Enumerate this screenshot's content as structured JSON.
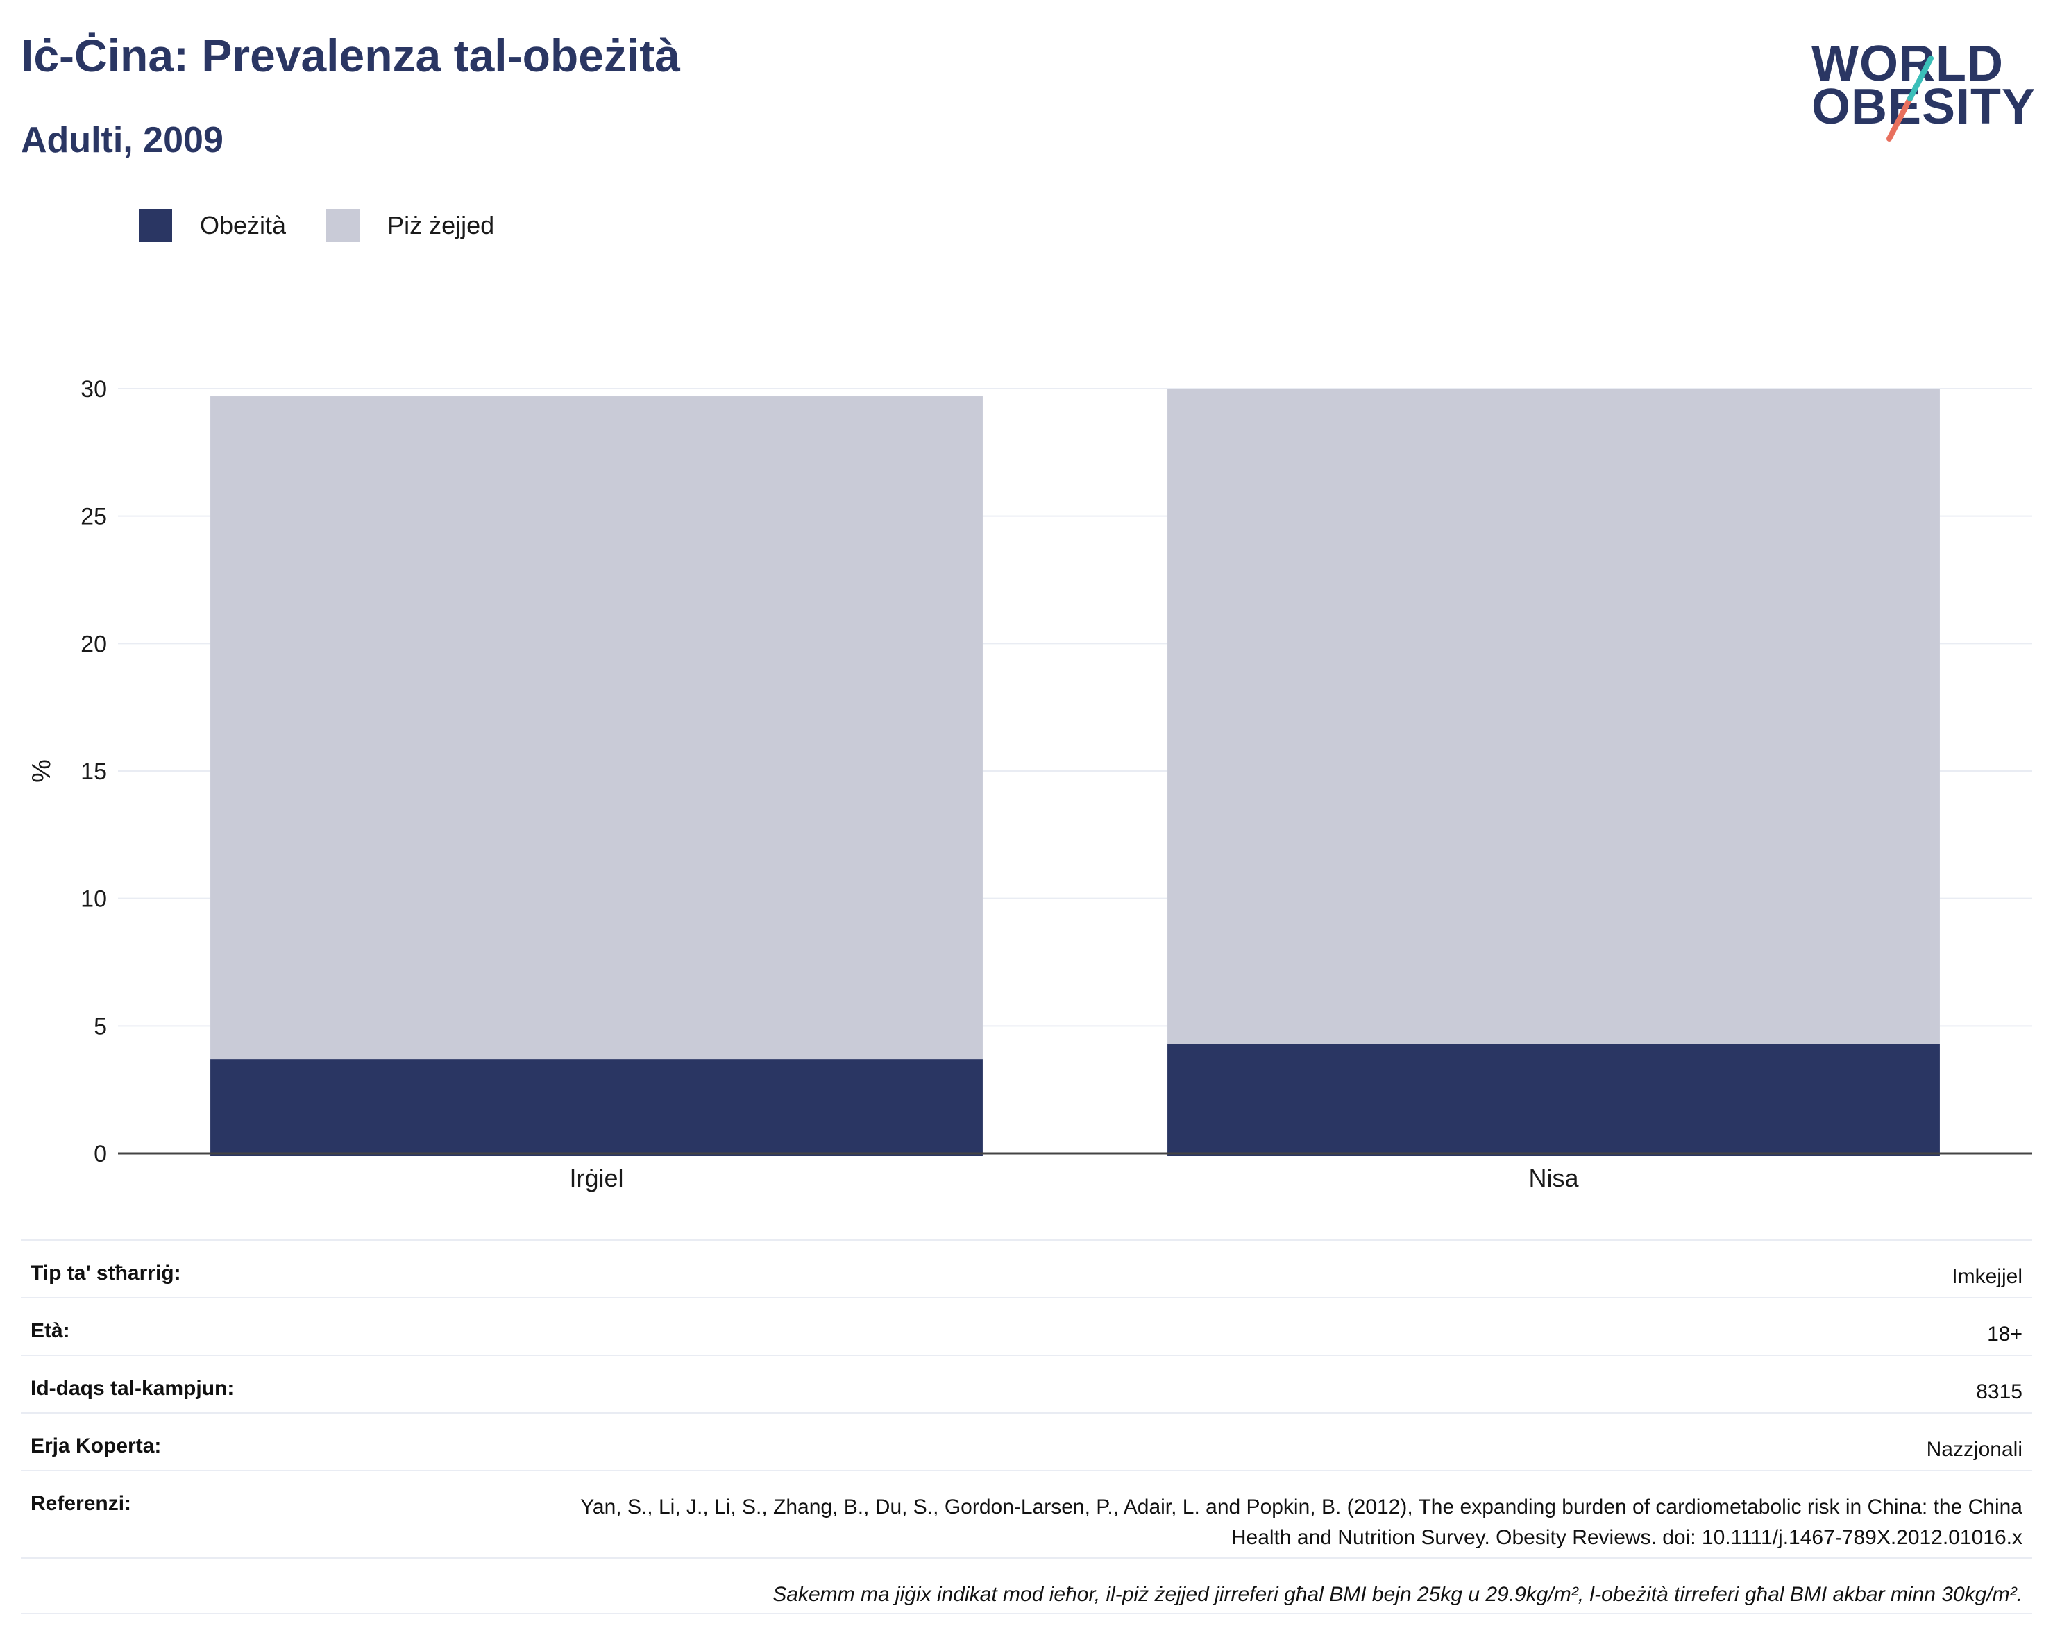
{
  "header": {
    "title": "Iċ-Ċina: Prevalenza tal-obeżità",
    "subtitle": "Adulti, 2009"
  },
  "logo": {
    "line1": "WORLD",
    "line2": "OBESITY"
  },
  "legend": [
    {
      "label": "Obeżità",
      "color": "#2a3663"
    },
    {
      "label": "Piż żejjed",
      "color": "#c9cbd7"
    }
  ],
  "chart_data": {
    "type": "bar",
    "stacked": true,
    "categories": [
      "Irġiel",
      "Nisa"
    ],
    "series": [
      {
        "name": "Obeżità",
        "color": "#2a3663",
        "values": [
          3.7,
          4.3
        ]
      },
      {
        "name": "Piż żejjed",
        "color": "#c9cbd7",
        "values": [
          26.0,
          25.7
        ]
      }
    ],
    "ylabel": "%",
    "ylim": [
      0,
      30
    ],
    "yticks": [
      0,
      5,
      10,
      15,
      20,
      25,
      30
    ],
    "grid": true,
    "legend_position": "top-left"
  },
  "info": {
    "rows": [
      {
        "key": "Tip ta' stħarriġ:",
        "value": "Imkejjel"
      },
      {
        "key": "Età:",
        "value": "18+"
      },
      {
        "key": "Id-daqs tal-kampjun:",
        "value": "8315"
      },
      {
        "key": "Erja Koperta:",
        "value": "Nazzjonali"
      }
    ],
    "reference_key": "Referenzi:",
    "reference_value": "Yan, S., Li, J., Li, S., Zhang, B., Du, S., Gordon-Larsen, P., Adair, L. and Popkin, B. (2012), The expanding burden of cardiometabolic risk in China: the China Health and Nutrition Survey. Obesity Reviews. doi: 10.1111/j.1467-789X.2012.01016.x",
    "note": "Sakemm ma jiġix indikat mod ieħor, il-piż żejjed jirreferi għal BMI bejn 25kg u 29.9kg/m², l-obeżità tirreferi għal BMI akbar minn 30kg/m²."
  }
}
